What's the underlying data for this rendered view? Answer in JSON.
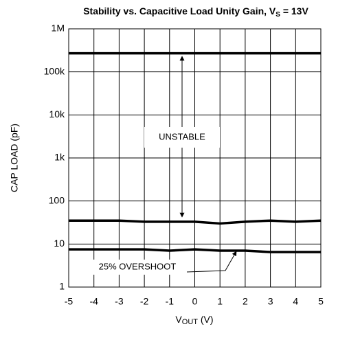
{
  "chart_data": {
    "type": "line",
    "title": [
      "Stability vs. Capacitive Load Unity Gain, V",
      "S",
      " = 13V"
    ],
    "xlabel": [
      "V",
      "OUT",
      " (V)"
    ],
    "ylabel": "CAP LOAD (pF)",
    "x": [
      -5,
      -4,
      -3,
      -2,
      -1,
      0,
      1,
      2,
      3,
      4,
      5
    ],
    "series": [
      {
        "color": "#000000",
        "values": [
          270000,
          270000,
          270000,
          270000,
          270000,
          270000,
          270000,
          270000,
          270000,
          270000,
          270000
        ]
      },
      {
        "color": "#000000",
        "values": [
          35,
          35,
          35,
          33,
          33,
          33,
          30,
          33,
          35,
          33,
          35
        ]
      },
      {
        "color": "#000000",
        "values": [
          7.5,
          7.5,
          7.5,
          7.5,
          7,
          7.5,
          7,
          7,
          6.5,
          6.5,
          6.5
        ]
      }
    ],
    "xlim": [
      -5,
      5
    ],
    "xticks": [
      -5,
      -4,
      -3,
      -2,
      -1,
      0,
      1,
      2,
      3,
      4,
      5
    ],
    "ylim": [
      1,
      1000000
    ],
    "yticks": [
      1,
      10,
      100,
      {
        "value": 1000,
        "label": "1k"
      },
      {
        "value": 10000,
        "label": "10k"
      },
      {
        "value": 100000,
        "label": "100k"
      },
      {
        "value": 1000000,
        "label": "1M"
      }
    ],
    "ylog": true,
    "grid": true,
    "annotations": [
      "UNSTABLE",
      "25% OVERSHOOT"
    ]
  }
}
